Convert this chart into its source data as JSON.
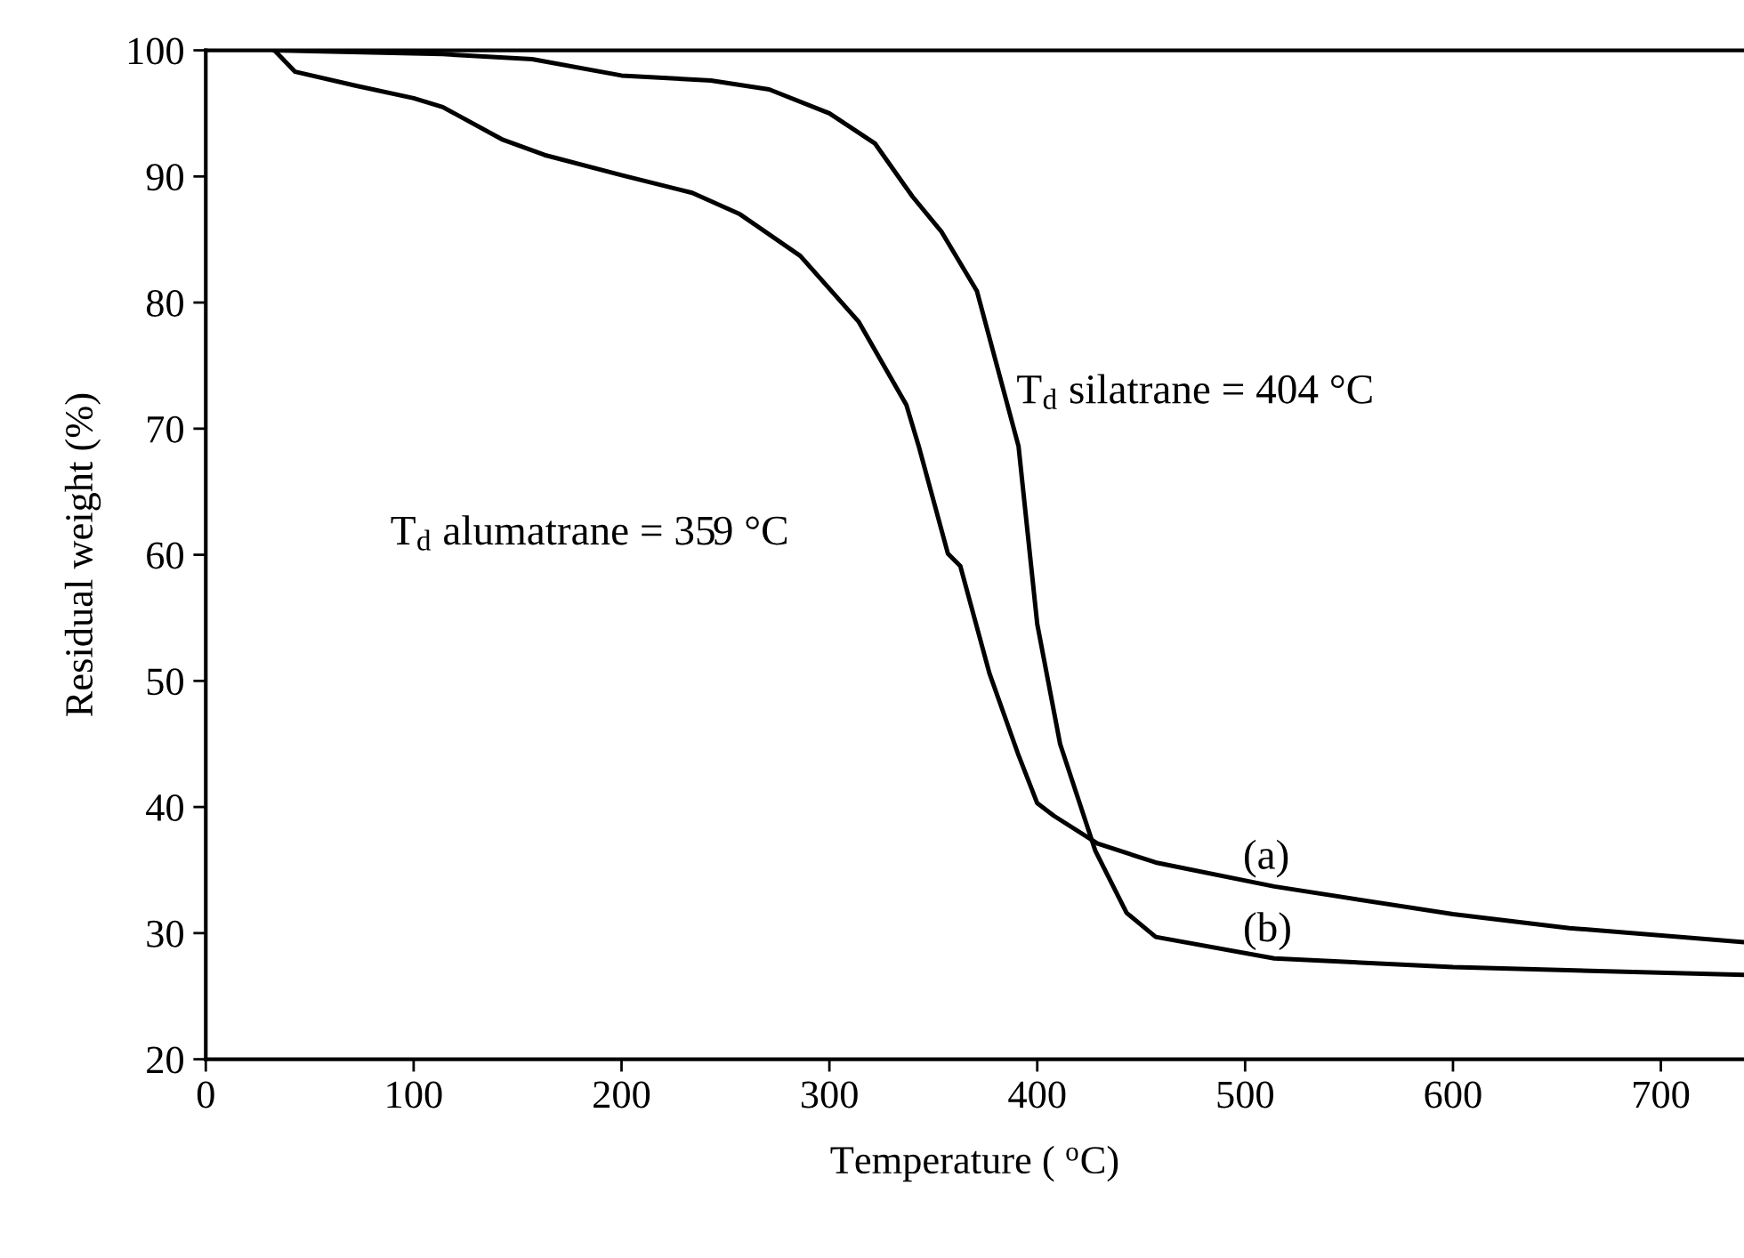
{
  "chart_data": {
    "type": "line",
    "xlabel": "Temperature ( $^{o}$C)",
    "ylabel": "Residual weight (%)",
    "xlim": [
      0,
      740
    ],
    "ylim": [
      20,
      100
    ],
    "xticks": [
      0,
      100,
      200,
      300,
      400,
      500,
      600,
      700
    ],
    "yticks": [
      20,
      30,
      40,
      50,
      60,
      70,
      80,
      90,
      100
    ],
    "grid": false,
    "marker": "none",
    "line_style": "solid",
    "series": [
      {
        "name": "(a)",
        "color": "#000000",
        "x": [
          33,
          43,
          72,
          100,
          114,
          143,
          163,
          200,
          234,
          257,
          286,
          314,
          337,
          343,
          357,
          363,
          377,
          391,
          400,
          408,
          429,
          457,
          514,
          600,
          656,
          739
        ],
        "values": [
          100,
          98.3,
          97.2,
          96.2,
          95.5,
          92.9,
          91.7,
          90.1,
          88.7,
          87.0,
          83.7,
          78.5,
          71.9,
          68.6,
          60.1,
          59.1,
          50.6,
          44.1,
          40.3,
          39.3,
          37.1,
          35.6,
          33.7,
          31.5,
          30.4,
          29.3
        ]
      },
      {
        "name": "(b)",
        "color": "#000000",
        "x": [
          33,
          114,
          157,
          200,
          243,
          271,
          300,
          322,
          340,
          354,
          371,
          391,
          400,
          411,
          428,
          443,
          457,
          514,
          600,
          739
        ],
        "values": [
          100,
          99.7,
          99.3,
          98.0,
          97.6,
          96.9,
          95.0,
          92.6,
          88.4,
          85.6,
          80.9,
          68.6,
          54.5,
          45.0,
          36.5,
          31.6,
          29.7,
          28.0,
          27.3,
          26.7
        ]
      }
    ],
    "annotations": [
      "T$_{d}$ silatrane = 404 °C",
      "T$_{d}$ alumatrane = 359 °C"
    ]
  }
}
